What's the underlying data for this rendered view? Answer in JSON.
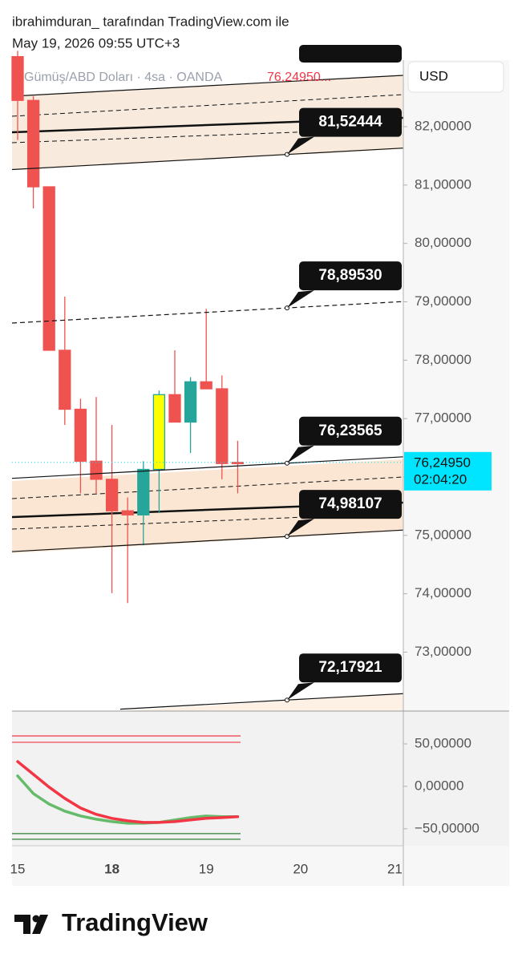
{
  "header": {
    "attribution": "ibrahimduran_ tarafından TradingView.com ile",
    "timestamp": "May 19, 2026 09:55 UTC+3"
  },
  "currency_button": "USD",
  "brand": "TradingView",
  "chart_data": {
    "type": "candlestick",
    "title": "Gümüş/ABD Doları · 4sa · OANDA",
    "title_price": "76,24950...",
    "categories": [
      "15",
      null,
      null,
      null,
      null,
      null,
      "18",
      null,
      null,
      null,
      null,
      null,
      "19",
      null,
      null,
      null,
      null,
      null,
      "20",
      null,
      null,
      null,
      null,
      null,
      "21"
    ],
    "open": [
      83.2,
      82.45,
      80.97,
      78.17,
      77.16,
      76.27,
      75.96,
      75.42,
      75.35,
      76.13,
      77.41,
      76.94,
      77.63,
      77.51,
      76.23,
      null,
      null,
      null,
      null,
      null,
      null,
      null,
      null,
      null,
      null
    ],
    "high": [
      83.3,
      82.52,
      80.97,
      79.09,
      77.34,
      77.37,
      76.89,
      75.65,
      76.27,
      77.48,
      78.17,
      77.71,
      78.88,
      77.74,
      76.62,
      null,
      null,
      null,
      null,
      null,
      null,
      null,
      null,
      null,
      null
    ],
    "low": [
      81.77,
      80.6,
      78.17,
      76.89,
      75.72,
      75.72,
      74.01,
      73.84,
      74.83,
      75.38,
      76.94,
      76.41,
      77.51,
      75.96,
      75.72,
      null,
      null,
      null,
      null,
      null,
      null,
      null,
      null,
      null,
      null
    ],
    "close": [
      82.45,
      80.97,
      78.17,
      77.16,
      76.27,
      75.96,
      75.42,
      75.35,
      76.13,
      77.41,
      76.94,
      77.63,
      77.51,
      76.23,
      76.2495,
      null,
      null,
      null,
      null,
      null,
      null,
      null,
      null,
      null,
      null
    ],
    "body_colors": [
      "#ef5350",
      "#ef5350",
      "#ef5350",
      "#ef5350",
      "#ef5350",
      "#ef5350",
      "#ef5350",
      "#ef5350",
      "#26a69a",
      "#ffff00",
      "#ef5350",
      "#26a69a",
      "#ef5350",
      "#ef5350",
      "#ef5350",
      null,
      null,
      null,
      null,
      null,
      null,
      null,
      null,
      null,
      null
    ],
    "ylim": [
      71.99,
      83.14
    ],
    "yticks": [
      {
        "value": 73,
        "label": "73,00000"
      },
      {
        "value": 74,
        "label": "74,00000"
      },
      {
        "value": 75,
        "label": "75,00000"
      },
      {
        "value": 76,
        "label": "76,00000"
      },
      {
        "value": 77,
        "label": "77,00000"
      },
      {
        "value": 78,
        "label": "78,00000"
      },
      {
        "value": 79,
        "label": "79,00000"
      },
      {
        "value": 80,
        "label": "80,00000"
      },
      {
        "value": 81,
        "label": "81,00000"
      },
      {
        "value": 82,
        "label": "82,00000"
      }
    ],
    "levels": [
      {
        "value": 81.52444,
        "label": "81,52444",
        "style": "solid"
      },
      {
        "value": 78.8953,
        "label": "78,89530",
        "style": "dashed"
      },
      {
        "value": 76.23565,
        "label": "76,23565",
        "style": "solid"
      },
      {
        "value": 74.98107,
        "label": "74,98107",
        "style": "solid"
      },
      {
        "value": 72.17921,
        "label": "72,17921",
        "style": "solid"
      }
    ],
    "last_price": {
      "value": 76.2495,
      "label": "76,24950",
      "countdown": "02:04:20",
      "color": "#00e5ff"
    },
    "indicator": {
      "ylim": [
        -70,
        88.7
      ],
      "yticks": [
        {
          "value": 50,
          "label": "50,00000"
        },
        {
          "value": 0,
          "label": "0,00000"
        },
        {
          "value": -50,
          "label": "−50,00000"
        }
      ],
      "series": [
        {
          "color": "#66bb6a",
          "values": [
            12.3,
            -8.5,
            -20.8,
            -29.2,
            -34.9,
            -38.7,
            -41.5,
            -43.4,
            -43.4,
            -42.5,
            -39.6,
            -36.8,
            -34.9,
            -35.8,
            -35.8,
            null,
            null,
            null,
            null,
            null,
            null,
            null,
            null,
            null,
            null
          ]
        },
        {
          "color": "#f23645",
          "values": [
            29.2,
            14.2,
            -0.9,
            -14.2,
            -25.5,
            -33.0,
            -37.7,
            -40.6,
            -42.5,
            -42.5,
            -41.5,
            -39.6,
            -37.7,
            -36.8,
            -35.8,
            null,
            null,
            null,
            null,
            null,
            null,
            null,
            null,
            null,
            null
          ]
        }
      ],
      "levels": [
        {
          "value": 59.4,
          "color": "#f23645"
        },
        {
          "value": 51.9,
          "color": "#f23645"
        },
        {
          "value": -55.7,
          "color": "#2e7d32"
        },
        {
          "value": -62.3,
          "color": "#2e7d32"
        }
      ]
    }
  }
}
